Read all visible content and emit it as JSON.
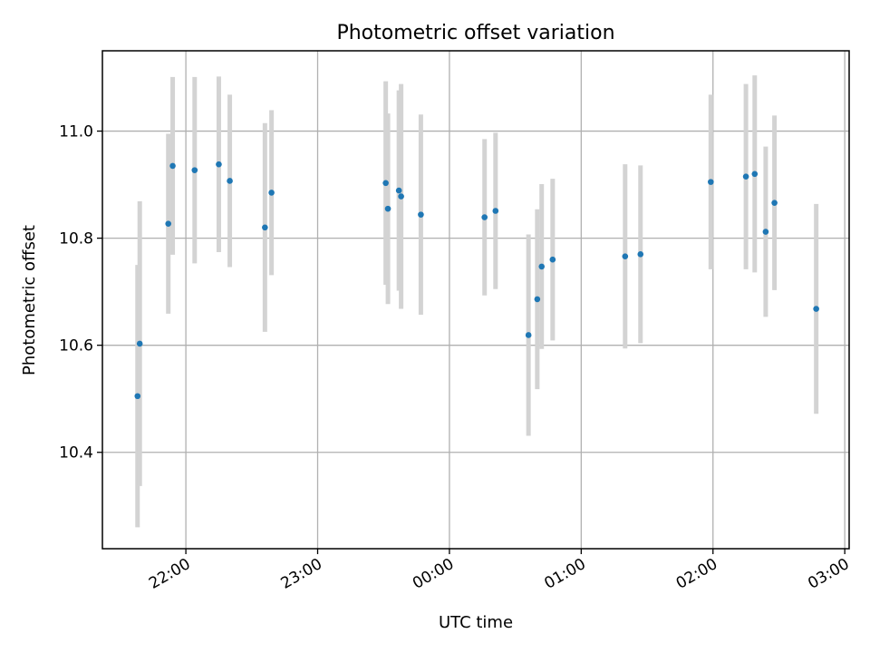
{
  "chart_data": {
    "type": "scatter",
    "title": "Photometric offset variation",
    "xlabel": "UTC time",
    "ylabel": "Photometric offset",
    "x_tick_labels": [
      "22:00",
      "23:00",
      "00:00",
      "01:00",
      "02:00",
      "03:00"
    ],
    "y_tick_labels": [
      "10.4",
      "10.6",
      "10.8",
      "11.0"
    ],
    "y_ticks": [
      10.4,
      10.6,
      10.8,
      11.0
    ],
    "xlim": [
      "21:22",
      "03:02"
    ],
    "ylim": [
      10.22,
      11.15
    ],
    "grid": true,
    "colors": {
      "point": "#1f77b4",
      "errorbar": "#d3d3d3"
    },
    "points": [
      {
        "time": "21:38",
        "y": 10.505,
        "err": 0.245
      },
      {
        "time": "21:39",
        "y": 10.603,
        "err": 0.266
      },
      {
        "time": "21:52",
        "y": 10.827,
        "err": 0.168
      },
      {
        "time": "21:54",
        "y": 10.935,
        "err": 0.166
      },
      {
        "time": "22:04",
        "y": 10.927,
        "err": 0.174
      },
      {
        "time": "22:15",
        "y": 10.938,
        "err": 0.164
      },
      {
        "time": "22:20",
        "y": 10.907,
        "err": 0.161
      },
      {
        "time": "22:36",
        "y": 10.82,
        "err": 0.195
      },
      {
        "time": "22:39",
        "y": 10.885,
        "err": 0.154
      },
      {
        "time": "23:31",
        "y": 10.903,
        "err": 0.19
      },
      {
        "time": "23:32",
        "y": 10.855,
        "err": 0.178
      },
      {
        "time": "23:37",
        "y": 10.889,
        "err": 0.187
      },
      {
        "time": "23:38",
        "y": 10.878,
        "err": 0.21
      },
      {
        "time": "23:47",
        "y": 10.844,
        "err": 0.187
      },
      {
        "time": "00:16",
        "y": 10.839,
        "err": 0.146
      },
      {
        "time": "00:21",
        "y": 10.851,
        "err": 0.146
      },
      {
        "time": "00:36",
        "y": 10.619,
        "err": 0.188
      },
      {
        "time": "00:40",
        "y": 10.686,
        "err": 0.168
      },
      {
        "time": "00:42",
        "y": 10.747,
        "err": 0.154
      },
      {
        "time": "00:47",
        "y": 10.76,
        "err": 0.151
      },
      {
        "time": "01:20",
        "y": 10.766,
        "err": 0.172
      },
      {
        "time": "01:27",
        "y": 10.77,
        "err": 0.166
      },
      {
        "time": "01:59",
        "y": 10.905,
        "err": 0.163
      },
      {
        "time": "02:15",
        "y": 10.915,
        "err": 0.173
      },
      {
        "time": "02:19",
        "y": 10.92,
        "err": 0.184
      },
      {
        "time": "02:24",
        "y": 10.812,
        "err": 0.159
      },
      {
        "time": "02:28",
        "y": 10.866,
        "err": 0.163
      },
      {
        "time": "02:47",
        "y": 10.668,
        "err": 0.196
      }
    ]
  }
}
